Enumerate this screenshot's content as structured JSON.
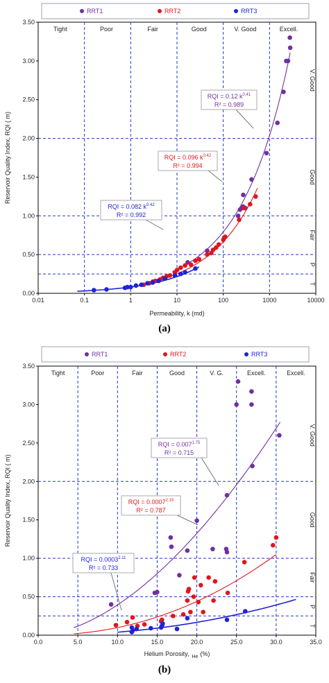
{
  "chart_data": [
    {
      "type": "scatter",
      "caption": "(a)",
      "xlabel": "Permeability, k (md)",
      "ylabel": "Reservoir Quality Index, RQI ( m)",
      "x_scale": "log",
      "xlim": [
        0.01,
        10000
      ],
      "ylim": [
        0,
        3.5
      ],
      "x_ticks": [
        "0.01",
        "0.1",
        "1",
        "10",
        "100",
        "1000",
        "10000"
      ],
      "y_ticks": [
        "0.00",
        "0.50",
        "1.00",
        "1.50",
        "2.00",
        "2.50",
        "3.00",
        "3.50"
      ],
      "legend": {
        "placement": "top",
        "entries": [
          "RRT1",
          "RRT2",
          "RRT3"
        ]
      },
      "classes_top": [
        {
          "label": "Tight",
          "x": 0.03
        },
        {
          "label": "Poor",
          "x": 0.3
        },
        {
          "label": "Fair",
          "x": 3
        },
        {
          "label": "Good",
          "x": 30
        },
        {
          "label": "V. Good",
          "x": 300
        },
        {
          "label": "Excell.",
          "x": 2600
        }
      ],
      "class_bounds_x": [
        0.1,
        1,
        10,
        100,
        1000
      ],
      "classes_right": [
        {
          "label": "V. Good",
          "y": 2.75
        },
        {
          "label": "Good",
          "y": 1.5
        },
        {
          "label": "Fair",
          "y": 0.75
        },
        {
          "label": "P",
          "y": 0.37
        },
        {
          "label": "T",
          "y": 0.12
        }
      ],
      "class_bounds_y": [
        0.25,
        0.5,
        1.0,
        2.0
      ],
      "series": [
        {
          "name": "RRT1",
          "color": "#7030a0",
          "points": [
            [
              17,
              0.4
            ],
            [
              45,
              0.55
            ],
            [
              105,
              0.72
            ],
            [
              210,
              1.0
            ],
            [
              230,
              1.08
            ],
            [
              270,
              1.12
            ],
            [
              300,
              1.1
            ],
            [
              250,
              1.1
            ],
            [
              270,
              1.27
            ],
            [
              410,
              1.47
            ],
            [
              860,
              1.81
            ],
            [
              1480,
              2.2
            ],
            [
              2000,
              2.6
            ],
            [
              2300,
              3.0
            ],
            [
              2500,
              3.0
            ],
            [
              2800,
              3.17
            ],
            [
              2750,
              3.3
            ]
          ],
          "fit": {
            "a": 0.12,
            "b": 0.41,
            "from": 8,
            "to": 2800,
            "r2": "0.989"
          }
        },
        {
          "name": "RRT2",
          "color": "#e0161c",
          "points": [
            [
              1.9,
              0.11
            ],
            [
              2.5,
              0.13
            ],
            [
              3,
              0.15
            ],
            [
              3.4,
              0.16
            ],
            [
              4,
              0.16
            ],
            [
              4.3,
              0.18
            ],
            [
              5,
              0.2
            ],
            [
              6,
              0.22
            ],
            [
              7,
              0.23
            ],
            [
              9,
              0.27
            ],
            [
              10,
              0.3
            ],
            [
              12,
              0.33
            ],
            [
              15,
              0.36
            ],
            [
              20,
              0.37
            ],
            [
              25,
              0.42
            ],
            [
              30,
              0.44
            ],
            [
              45,
              0.5
            ],
            [
              55,
              0.52
            ],
            [
              60,
              0.56
            ],
            [
              70,
              0.59
            ],
            [
              80,
              0.63
            ],
            [
              100,
              0.69
            ],
            [
              110,
              0.73
            ],
            [
              220,
              0.95
            ],
            [
              280,
              1.1
            ],
            [
              380,
              1.15
            ],
            [
              500,
              1.25
            ]
          ],
          "fit": {
            "a": 0.096,
            "b": 0.42,
            "from": 1.5,
            "to": 550,
            "r2": "0.994"
          }
        },
        {
          "name": "RRT3",
          "color": "#1f23d6",
          "points": [
            [
              0.16,
              0.04
            ],
            [
              0.3,
              0.05
            ],
            [
              0.75,
              0.07
            ],
            [
              0.85,
              0.08
            ],
            [
              1.0,
              0.08
            ],
            [
              1.3,
              0.1
            ],
            [
              1.7,
              0.11
            ],
            [
              2.3,
              0.13
            ],
            [
              3,
              0.14
            ],
            [
              4,
              0.16
            ],
            [
              5.5,
              0.19
            ],
            [
              9,
              0.23
            ],
            [
              12,
              0.25
            ],
            [
              15,
              0.27
            ],
            [
              25,
              0.32
            ]
          ],
          "fit": {
            "a": 0.082,
            "b": 0.42,
            "from": 0.07,
            "to": 30,
            "r2": "0.992"
          }
        }
      ],
      "annotations": [
        {
          "series": "RRT1",
          "eq_main": "RQI = 0.12 k",
          "eq_exp": "0.41",
          "r2": "R² = 0.989"
        },
        {
          "series": "RRT2",
          "eq_main": "RQI = 0.096 k",
          "eq_exp": "0.42",
          "r2": "R² = 0.994"
        },
        {
          "series": "RRT3",
          "eq_main": "RQI = 0.082 k",
          "eq_exp": "0.42",
          "r2": "R² = 0.992"
        }
      ]
    },
    {
      "type": "scatter",
      "caption": "(b)",
      "xlabel": "Helium Porosity,",
      "xlabel_sub": "He",
      "xlabel_tail": "(%)",
      "ylabel": "Reservoir Quality Index, RQI ( m)",
      "x_scale": "linear",
      "xlim": [
        0,
        35
      ],
      "ylim": [
        0,
        3.5
      ],
      "x_ticks": [
        "0.0",
        "5.0",
        "10.0",
        "15.0",
        "20.0",
        "25.0",
        "30.0",
        "35.0"
      ],
      "y_ticks": [
        "0.00",
        "0.50",
        "1.00",
        "1.50",
        "2.00",
        "2.50",
        "3.00",
        "3.50"
      ],
      "legend": {
        "placement": "top",
        "entries": [
          "RRT1",
          "RRT2",
          "RRT3"
        ]
      },
      "classes_top": [
        {
          "label": "Tight",
          "x": 2.5
        },
        {
          "label": "Poor",
          "x": 7.5
        },
        {
          "label": "Fair",
          "x": 12.5
        },
        {
          "label": "Good",
          "x": 17.5
        },
        {
          "label": "V. G.",
          "x": 22.5
        },
        {
          "label": "Excell.",
          "x": 27.5
        },
        {
          "label": "Excell.",
          "x": 32.5
        }
      ],
      "class_bounds_x": [
        5,
        10,
        15,
        20,
        25,
        30
      ],
      "classes_right": [
        {
          "label": "V. Good",
          "y": 2.6
        },
        {
          "label": "Good",
          "y": 1.5
        },
        {
          "label": "Fair",
          "y": 0.75
        },
        {
          "label": "P",
          "y": 0.37
        },
        {
          "label": "T",
          "y": 0.12
        }
      ],
      "class_bounds_y": [
        0.25,
        0.5,
        1.0,
        2.0
      ],
      "series": [
        {
          "name": "RRT1",
          "color": "#7030a0",
          "points": [
            [
              9.2,
              0.4
            ],
            [
              14.7,
              0.55
            ],
            [
              15,
              0.56
            ],
            [
              17.8,
              0.78
            ],
            [
              16.8,
              1.15
            ],
            [
              18.8,
              1.1
            ],
            [
              16.7,
              1.27
            ],
            [
              20,
              1.49
            ],
            [
              22,
              1.12
            ],
            [
              23.7,
              1.12
            ],
            [
              23.8,
              1.08
            ],
            [
              23.8,
              1.82
            ],
            [
              25,
              3.0
            ],
            [
              25.2,
              3.3
            ],
            [
              26.9,
              3.17
            ],
            [
              26.9,
              3.0
            ],
            [
              27,
              2.2
            ],
            [
              30.4,
              2.6
            ]
          ],
          "fit": {
            "a": 0.007,
            "b": 1.75,
            "from": 4.5,
            "to": 30.5,
            "r2": "0.715"
          }
        },
        {
          "name": "RRT2",
          "color": "#e0161c",
          "points": [
            [
              9.8,
              0.13
            ],
            [
              11.2,
              0.17
            ],
            [
              11.9,
              0.23
            ],
            [
              12.5,
              0.12
            ],
            [
              13.4,
              0.14
            ],
            [
              15.5,
              0.18
            ],
            [
              15.6,
              0.2
            ],
            [
              17,
              0.25
            ],
            [
              18.3,
              0.27
            ],
            [
              18.8,
              0.45
            ],
            [
              18.9,
              0.57
            ],
            [
              19,
              0.6
            ],
            [
              19.2,
              0.3
            ],
            [
              19.6,
              0.5
            ],
            [
              19.7,
              0.75
            ],
            [
              20.2,
              0.43
            ],
            [
              20.5,
              0.65
            ],
            [
              20.8,
              0.3
            ],
            [
              21.5,
              0.75
            ],
            [
              22.1,
              0.45
            ],
            [
              22.3,
              0.7
            ],
            [
              23.9,
              0.55
            ],
            [
              26,
              0.95
            ],
            [
              29.6,
              1.17
            ],
            [
              30,
              1.27
            ]
          ],
          "fit": {
            "a": 0.0007,
            "b": 2.15,
            "from": 4.5,
            "to": 30,
            "r2": "0.787"
          }
        },
        {
          "name": "RRT3",
          "color": "#1f23d6",
          "points": [
            [
              11.8,
              0.04
            ],
            [
              11.9,
              0.06
            ],
            [
              12.4,
              0.08
            ],
            [
              14.2,
              0.09
            ],
            [
              15.5,
              0.1
            ],
            [
              15.6,
              0.12
            ],
            [
              15.7,
              0.15
            ],
            [
              17.5,
              0.08
            ],
            [
              18.8,
              0.22
            ],
            [
              23.8,
              0.2
            ],
            [
              26.1,
              0.31
            ],
            [
              11.8,
              0.1
            ]
          ],
          "fit": {
            "a": 0.0003,
            "b": 2.11,
            "from": 10,
            "to": 32.5,
            "r2": "0.733"
          }
        }
      ],
      "annotations": [
        {
          "series": "RRT1",
          "eq_main": "RQI = 0.007",
          "eq_exp": "1.75",
          "r2": "R² = 0.715"
        },
        {
          "series": "RRT2",
          "eq_main": "RQI = 0.0007",
          "eq_exp": "2.15",
          "r2": "R² = 0.787"
        },
        {
          "series": "RRT3",
          "eq_main": "RQI = 0.0003",
          "eq_exp": "2.11",
          "r2": "R² = 0.733"
        }
      ]
    }
  ]
}
